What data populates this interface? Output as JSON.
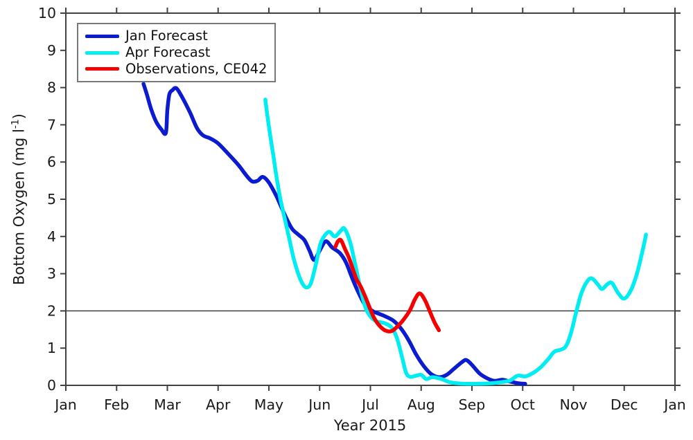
{
  "figure": {
    "xlabel": "Year 2015",
    "ylabel_prefix": "Bottom Oxygen (mg l",
    "ylabel_sup": "-1",
    "ylabel_suffix": ")"
  },
  "chart_data": {
    "type": "line",
    "title": "",
    "xlabel": "Year 2015",
    "ylabel": "Bottom Oxygen (mg l^-1)",
    "x_unit": "month (0 = Jan 1, 2015)",
    "x_tick_labels": [
      "Jan",
      "Feb",
      "Mar",
      "Apr",
      "May",
      "Jun",
      "Jul",
      "Aug",
      "Sep",
      "Oct",
      "Nov",
      "Dec",
      "Jan"
    ],
    "y_ticks": [
      0,
      1,
      2,
      3,
      4,
      5,
      6,
      7,
      8,
      9,
      10
    ],
    "ylim": [
      0,
      10
    ],
    "xlim_months": [
      0,
      12
    ],
    "grid": false,
    "legend_position": "top-left",
    "axis_color": "#414141",
    "reference_line": {
      "y": 2,
      "color": "#3d3d3d"
    },
    "series": [
      {
        "name": "Jan Forecast",
        "color": "#0b1bd0",
        "points": [
          [
            1.53,
            8.1
          ],
          [
            1.6,
            7.8
          ],
          [
            1.68,
            7.42
          ],
          [
            1.78,
            7.08
          ],
          [
            1.88,
            6.88
          ],
          [
            1.97,
            6.78
          ],
          [
            2.0,
            7.4
          ],
          [
            2.04,
            7.82
          ],
          [
            2.1,
            7.93
          ],
          [
            2.18,
            7.98
          ],
          [
            2.3,
            7.72
          ],
          [
            2.45,
            7.32
          ],
          [
            2.58,
            6.92
          ],
          [
            2.7,
            6.72
          ],
          [
            2.85,
            6.63
          ],
          [
            3.0,
            6.5
          ],
          [
            3.2,
            6.22
          ],
          [
            3.4,
            5.92
          ],
          [
            3.55,
            5.65
          ],
          [
            3.67,
            5.48
          ],
          [
            3.78,
            5.5
          ],
          [
            3.88,
            5.6
          ],
          [
            4.0,
            5.45
          ],
          [
            4.15,
            5.08
          ],
          [
            4.3,
            4.62
          ],
          [
            4.45,
            4.22
          ],
          [
            4.58,
            4.05
          ],
          [
            4.7,
            3.9
          ],
          [
            4.8,
            3.62
          ],
          [
            4.89,
            3.37
          ],
          [
            5.0,
            3.62
          ],
          [
            5.12,
            3.87
          ],
          [
            5.25,
            3.7
          ],
          [
            5.4,
            3.55
          ],
          [
            5.52,
            3.3
          ],
          [
            5.65,
            2.85
          ],
          [
            5.78,
            2.45
          ],
          [
            5.9,
            2.15
          ],
          [
            6.05,
            1.99
          ],
          [
            6.25,
            1.88
          ],
          [
            6.45,
            1.74
          ],
          [
            6.6,
            1.53
          ],
          [
            6.75,
            1.22
          ],
          [
            6.9,
            0.83
          ],
          [
            7.05,
            0.52
          ],
          [
            7.2,
            0.3
          ],
          [
            7.35,
            0.22
          ],
          [
            7.5,
            0.28
          ],
          [
            7.65,
            0.45
          ],
          [
            7.8,
            0.62
          ],
          [
            7.89,
            0.68
          ],
          [
            8.0,
            0.55
          ],
          [
            8.15,
            0.32
          ],
          [
            8.3,
            0.19
          ],
          [
            8.45,
            0.12
          ],
          [
            8.6,
            0.15
          ],
          [
            8.75,
            0.1
          ],
          [
            8.9,
            0.06
          ],
          [
            9.05,
            0.04
          ]
        ]
      },
      {
        "name": "Apr Forecast",
        "color": "#00eef2",
        "points": [
          [
            3.93,
            7.68
          ],
          [
            3.98,
            7.15
          ],
          [
            4.03,
            6.68
          ],
          [
            4.09,
            6.15
          ],
          [
            4.15,
            5.6
          ],
          [
            4.22,
            5.05
          ],
          [
            4.3,
            4.55
          ],
          [
            4.4,
            3.95
          ],
          [
            4.5,
            3.35
          ],
          [
            4.62,
            2.85
          ],
          [
            4.72,
            2.64
          ],
          [
            4.82,
            2.72
          ],
          [
            4.92,
            3.22
          ],
          [
            5.02,
            3.82
          ],
          [
            5.12,
            4.06
          ],
          [
            5.2,
            4.12
          ],
          [
            5.3,
            4.0
          ],
          [
            5.42,
            4.16
          ],
          [
            5.49,
            4.21
          ],
          [
            5.6,
            3.85
          ],
          [
            5.7,
            3.25
          ],
          [
            5.8,
            2.62
          ],
          [
            5.9,
            2.1
          ],
          [
            6.0,
            1.85
          ],
          [
            6.12,
            1.72
          ],
          [
            6.28,
            1.67
          ],
          [
            6.42,
            1.55
          ],
          [
            6.52,
            1.28
          ],
          [
            6.62,
            0.78
          ],
          [
            6.7,
            0.35
          ],
          [
            6.78,
            0.23
          ],
          [
            6.9,
            0.26
          ],
          [
            7.0,
            0.28
          ],
          [
            7.1,
            0.17
          ],
          [
            7.22,
            0.22
          ],
          [
            7.38,
            0.18
          ],
          [
            7.55,
            0.09
          ],
          [
            7.75,
            0.05
          ],
          [
            8.0,
            0.04
          ],
          [
            8.3,
            0.05
          ],
          [
            8.55,
            0.08
          ],
          [
            8.75,
            0.13
          ],
          [
            8.9,
            0.26
          ],
          [
            9.05,
            0.24
          ],
          [
            9.2,
            0.33
          ],
          [
            9.35,
            0.48
          ],
          [
            9.5,
            0.7
          ],
          [
            9.62,
            0.9
          ],
          [
            9.75,
            0.96
          ],
          [
            9.85,
            1.05
          ],
          [
            9.95,
            1.4
          ],
          [
            10.05,
            1.95
          ],
          [
            10.15,
            2.45
          ],
          [
            10.25,
            2.75
          ],
          [
            10.35,
            2.88
          ],
          [
            10.47,
            2.73
          ],
          [
            10.56,
            2.59
          ],
          [
            10.67,
            2.72
          ],
          [
            10.76,
            2.75
          ],
          [
            10.88,
            2.48
          ],
          [
            11.0,
            2.33
          ],
          [
            11.13,
            2.55
          ],
          [
            11.25,
            3.0
          ],
          [
            11.35,
            3.55
          ],
          [
            11.43,
            4.05
          ]
        ]
      },
      {
        "name": "Observations, CE042",
        "color": "#f50000",
        "points": [
          [
            5.31,
            3.72
          ],
          [
            5.36,
            3.87
          ],
          [
            5.42,
            3.9
          ],
          [
            5.5,
            3.66
          ],
          [
            5.58,
            3.42
          ],
          [
            5.66,
            3.1
          ],
          [
            5.73,
            2.84
          ],
          [
            5.8,
            2.68
          ],
          [
            5.88,
            2.44
          ],
          [
            5.97,
            2.14
          ],
          [
            6.07,
            1.82
          ],
          [
            6.18,
            1.6
          ],
          [
            6.3,
            1.47
          ],
          [
            6.42,
            1.46
          ],
          [
            6.53,
            1.58
          ],
          [
            6.65,
            1.76
          ],
          [
            6.78,
            2.02
          ],
          [
            6.88,
            2.32
          ],
          [
            6.97,
            2.47
          ],
          [
            7.07,
            2.3
          ],
          [
            7.16,
            2.02
          ],
          [
            7.26,
            1.7
          ],
          [
            7.35,
            1.48
          ]
        ]
      }
    ]
  }
}
